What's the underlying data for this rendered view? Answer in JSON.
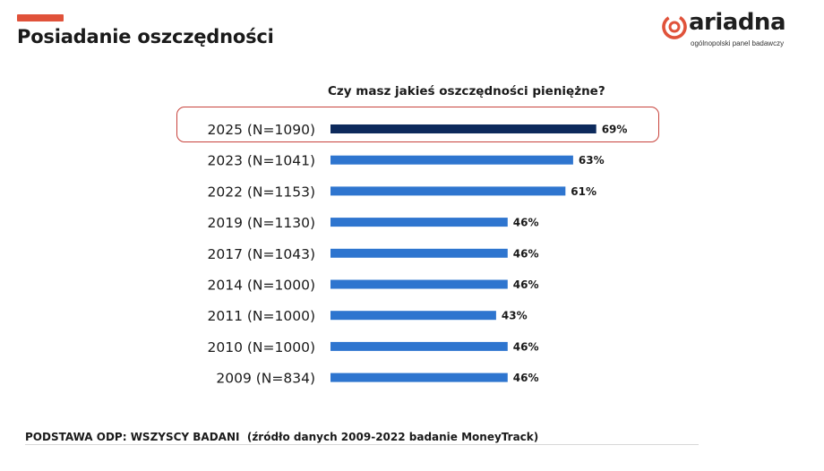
{
  "header": {
    "title": "Posiadanie oszczędności",
    "accent_color": "#e0523a"
  },
  "logo": {
    "wordmark": "ariadna",
    "tagline": "ogólnopolski panel badawczy",
    "icon": "ariadna-logo-icon",
    "brand_color": "#e0523a"
  },
  "chart_data": {
    "type": "bar",
    "orientation": "horizontal",
    "title": "Czy masz jakieś oszczędności pieniężne?",
    "categories": [
      "2025 (N=1090)",
      "2023 (N=1041)",
      "2022 (N=1153)",
      "2019 (N=1130)",
      "2017 (N=1043)",
      "2014 (N=1000)",
      "2011 (N=1000)",
      "2010 (N=1000)",
      "2009 (N=834)"
    ],
    "values": [
      69,
      63,
      61,
      46,
      46,
      46,
      43,
      46,
      46
    ],
    "value_labels": [
      "69%",
      "63%",
      "61%",
      "46%",
      "46%",
      "46%",
      "43%",
      "46%",
      "46%"
    ],
    "unit": "%",
    "xlim": [
      0,
      100
    ],
    "grid": false,
    "legend": "none",
    "highlighted_category": "2025 (N=1090)",
    "colors": {
      "highlight": "#0d2a5c",
      "default": "#2e75cf",
      "highlight_border": "#c8433c"
    }
  },
  "footer": {
    "note": "PODSTAWA ODP: WSZYSCY BADANI  (źródło danych 2009-2022 badanie MoneyTrack)"
  }
}
